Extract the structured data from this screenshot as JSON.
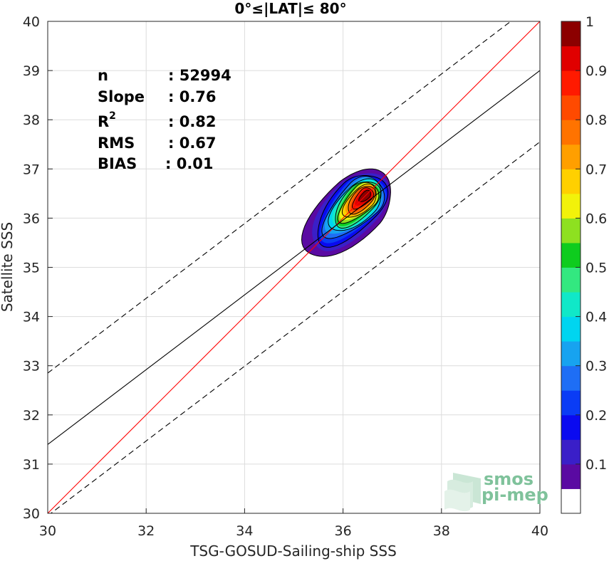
{
  "chart_data": {
    "type": "heatmap",
    "title": "0°≤|LAT|≤ 80°",
    "xlabel": "TSG-GOSUD-Sailing-ship SSS",
    "ylabel": "Satellite SSS",
    "xlim": [
      30,
      40
    ],
    "ylim": [
      30,
      40
    ],
    "xticks": [
      "30",
      "32",
      "34",
      "36",
      "38",
      "40"
    ],
    "yticks": [
      "30",
      "31",
      "32",
      "33",
      "34",
      "35",
      "36",
      "37",
      "38",
      "39",
      "40"
    ],
    "grid": true,
    "colorbar": {
      "range": [
        0,
        1
      ],
      "ticks": [
        "0.1",
        "0.2",
        "0.3",
        "0.4",
        "0.5",
        "0.6",
        "0.7",
        "0.8",
        "0.9",
        "1"
      ],
      "levels": [
        {
          "v0": 0.0,
          "color": "#ffffff"
        },
        {
          "v0": 0.05,
          "color": "#5a0aa2"
        },
        {
          "v0": 0.1,
          "color": "#3a1fc8"
        },
        {
          "v0": 0.15,
          "color": "#0a0af0"
        },
        {
          "v0": 0.2,
          "color": "#0a3cf5"
        },
        {
          "v0": 0.25,
          "color": "#1e6ef5"
        },
        {
          "v0": 0.3,
          "color": "#17a3f0"
        },
        {
          "v0": 0.35,
          "color": "#00d5f0"
        },
        {
          "v0": 0.4,
          "color": "#10e8c8"
        },
        {
          "v0": 0.45,
          "color": "#33e880"
        },
        {
          "v0": 0.5,
          "color": "#0ecc1e"
        },
        {
          "v0": 0.55,
          "color": "#8ee020"
        },
        {
          "v0": 0.6,
          "color": "#f2f20a"
        },
        {
          "v0": 0.65,
          "color": "#ffd000"
        },
        {
          "v0": 0.7,
          "color": "#ff9f00"
        },
        {
          "v0": 0.75,
          "color": "#ff7300"
        },
        {
          "v0": 0.8,
          "color": "#ff4a00"
        },
        {
          "v0": 0.85,
          "color": "#ff1a00"
        },
        {
          "v0": 0.9,
          "color": "#e00000"
        },
        {
          "v0": 0.95,
          "color": "#8c0000"
        }
      ]
    },
    "density_peak": {
      "x": 36.5,
      "y": 36.5,
      "max": 1.0
    },
    "lines": [
      {
        "name": "1:1",
        "slope": 1,
        "intercept": 0,
        "color": "#ff0000",
        "style": "solid"
      },
      {
        "name": "regression",
        "slope": 0.76,
        "intercept": 8.6,
        "color": "#000000",
        "style": "solid"
      },
      {
        "name": "upper",
        "slope": 0.76,
        "intercept": 10.05,
        "color": "#000000",
        "style": "dashed"
      },
      {
        "name": "lower",
        "slope": 0.76,
        "intercept": 7.15,
        "color": "#000000",
        "style": "dashed"
      }
    ]
  },
  "stats": [
    {
      "label": "n",
      "value": ": 52994"
    },
    {
      "label": "Slope",
      "value": ": 0.76"
    },
    {
      "label": "R",
      "sup": "2",
      "value": ": 0.82"
    },
    {
      "label": "RMS",
      "value": ": 0.67"
    },
    {
      "label": "BIAS",
      "value": ": 0.01"
    }
  ],
  "logo": {
    "line1": "smos",
    "line2": "pi-mep"
  }
}
